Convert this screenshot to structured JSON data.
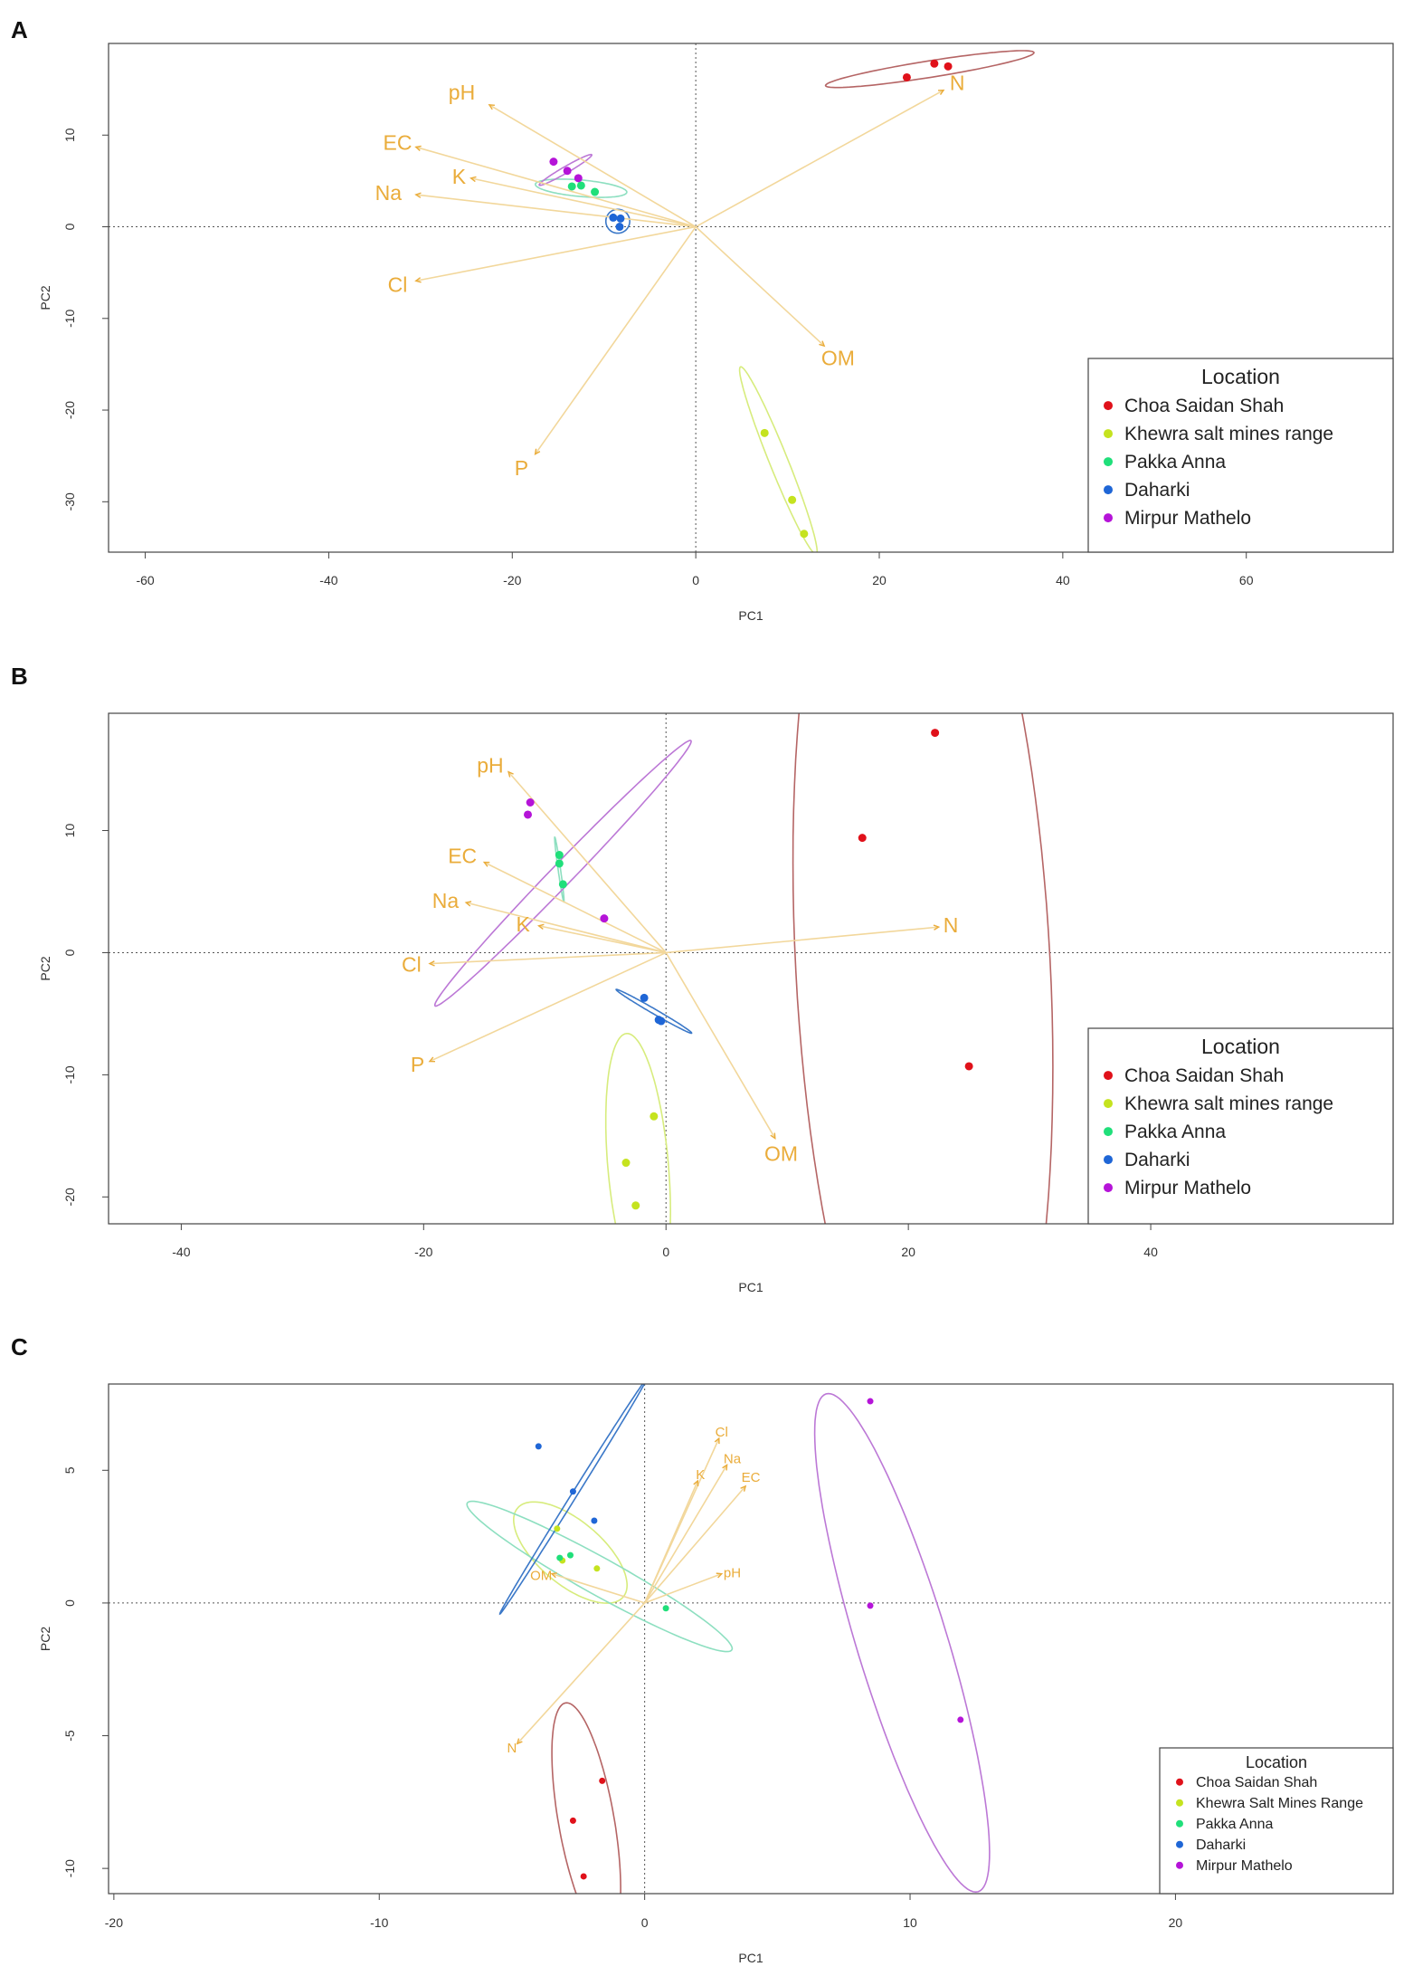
{
  "colors": {
    "loading": "#eaac3a",
    "arrow": "#f2d79b",
    "axis": "#333333",
    "Choa Saidan Shah": "#e0111a",
    "Khewra salt mines range": "#c5e31f",
    "Pakka Anna": "#20df7a",
    "Daharki": "#1f66d6",
    "Mirpur Mathelo": "#b514d8",
    "ellipse_Choa Saidan Shah": "#b56565",
    "ellipse_Khewra salt mines range": "#d7ec7d",
    "ellipse_Pakka Anna": "#8ddfc0",
    "ellipse_Daharki": "#3b78c8",
    "ellipse_Mirpur Mathelo": "#bc78d6"
  },
  "chart_data": [
    {
      "type": "scatter",
      "panel_label": "A",
      "xlabel": "PC1",
      "ylabel": "PC2",
      "xlim": [
        -64,
        76
      ],
      "ylim": [
        -35.5,
        20
      ],
      "xticks": [
        "-60",
        "-40",
        "-20",
        "0",
        "20",
        "40",
        "60"
      ],
      "yticks": [
        "-30",
        "-20",
        "-10",
        "0",
        "10"
      ],
      "legend_title": "Location",
      "legend_position": "bottom-right",
      "legend_items": [
        "Choa Saidan Shah",
        "Khewra salt mines range",
        "Pakka Anna",
        "Daharki",
        "Mirpur Mathelo"
      ],
      "series": [
        {
          "name": "Choa Saidan Shah",
          "points": [
            [
              23,
              16.3
            ],
            [
              26,
              17.8
            ],
            [
              27.5,
              17.5
            ]
          ],
          "ellipse": {
            "cx": 25.5,
            "cy": 17.2,
            "rx": 11.5,
            "ry": 0.9,
            "angle": 9
          }
        },
        {
          "name": "Khewra salt mines range",
          "points": [
            [
              7.5,
              -22.5
            ],
            [
              10.5,
              -29.8
            ],
            [
              11.8,
              -33.5
            ]
          ],
          "ellipse": {
            "cx": 9,
            "cy": -25.5,
            "rx": 11,
            "ry": 1.0,
            "angle": -68
          }
        },
        {
          "name": "Pakka Anna",
          "points": [
            [
              -13.5,
              4.4
            ],
            [
              -12.5,
              4.5
            ],
            [
              -11,
              3.8
            ]
          ],
          "ellipse": {
            "cx": -12.5,
            "cy": 4.2,
            "rx": 5,
            "ry": 0.9,
            "angle": -5
          }
        },
        {
          "name": "Daharki",
          "points": [
            [
              -9,
              1
            ],
            [
              -8.2,
              0.9
            ],
            [
              -8.3,
              0.0
            ]
          ],
          "ellipse": {
            "cx": -8.5,
            "cy": 0.6,
            "rx": 1.3,
            "ry": 1.3,
            "angle": 0
          }
        },
        {
          "name": "Mirpur Mathelo",
          "points": [
            [
              -15.5,
              7.1
            ],
            [
              -14,
              6.1
            ],
            [
              -12.8,
              5.3
            ]
          ],
          "ellipse": {
            "cx": -14.2,
            "cy": 6.2,
            "rx": 3.3,
            "ry": 0.35,
            "angle": 30
          }
        }
      ],
      "loadings": [
        {
          "label": "pH",
          "x": -22.5,
          "y": 13.3,
          "lx": -25.5,
          "ly": 14.5
        },
        {
          "label": "EC",
          "x": -30.5,
          "y": 8.7,
          "lx": -32.5,
          "ly": 9.0
        },
        {
          "label": "K",
          "x": -24.5,
          "y": 5.3,
          "lx": -25.8,
          "ly": 5.3
        },
        {
          "label": "Na",
          "x": -30.5,
          "y": 3.5,
          "lx": -33.5,
          "ly": 3.5
        },
        {
          "label": "Cl",
          "x": -30.5,
          "y": -5.9,
          "lx": -32.5,
          "ly": -6.5
        },
        {
          "label": "P",
          "x": -17.5,
          "y": -24.8,
          "lx": -19,
          "ly": -26.5
        },
        {
          "label": "OM",
          "x": 14,
          "y": -13,
          "lx": 15.5,
          "ly": -14.5
        },
        {
          "label": "N",
          "x": 27,
          "y": 14.9,
          "lx": 28.5,
          "ly": 15.5
        }
      ]
    },
    {
      "type": "scatter",
      "panel_label": "B",
      "xlabel": "PC1",
      "ylabel": "PC2",
      "xlim": [
        -46,
        60
      ],
      "ylim": [
        -22.2,
        19.6
      ],
      "xticks": [
        "-40",
        "-20",
        "0",
        "20",
        "40"
      ],
      "yticks": [
        "-20",
        "-10",
        "0",
        "10"
      ],
      "legend_title": "Location",
      "legend_position": "bottom-right",
      "legend_items": [
        "Choa Saidan Shah",
        "Khewra salt mines range",
        "Pakka Anna",
        "Daharki",
        "Mirpur Mathelo"
      ],
      "series": [
        {
          "name": "Choa Saidan Shah",
          "points": [
            [
              22.2,
              18
            ],
            [
              16.2,
              9.4
            ],
            [
              25,
              -9.3
            ]
          ],
          "ellipse": {
            "cx": 21.2,
            "cy": -1.0,
            "rx": 43,
            "ry": 10.5,
            "angle": -87
          }
        },
        {
          "name": "Khewra salt mines range",
          "points": [
            [
              -1,
              -13.4
            ],
            [
              -3.3,
              -17.2
            ],
            [
              -2.5,
              -20.7
            ]
          ],
          "ellipse": {
            "cx": -2.3,
            "cy": -17.5,
            "rx": 11,
            "ry": 2.5,
            "angle": -85
          }
        },
        {
          "name": "Pakka Anna",
          "points": [
            [
              -8.8,
              8
            ],
            [
              -8.8,
              7.3
            ],
            [
              -8.5,
              5.6
            ]
          ],
          "ellipse": {
            "cx": -8.8,
            "cy": 6.8,
            "rx": 2.7,
            "ry": 0.1,
            "angle": -82
          }
        },
        {
          "name": "Daharki",
          "points": [
            [
              -1.8,
              -3.7
            ],
            [
              -0.6,
              -5.5
            ],
            [
              -0.4,
              -5.6
            ]
          ],
          "ellipse": {
            "cx": -1.0,
            "cy": -4.8,
            "rx": 3.6,
            "ry": 0.2,
            "angle": -30
          }
        },
        {
          "name": "Mirpur Mathelo",
          "points": [
            [
              -11.2,
              12.3
            ],
            [
              -11.4,
              11.3
            ],
            [
              -5.1,
              2.8
            ]
          ],
          "ellipse": {
            "cx": -8.5,
            "cy": 6.5,
            "rx": 15.2,
            "ry": 0.9,
            "angle": 46
          }
        }
      ],
      "loadings": [
        {
          "label": "pH",
          "x": -13,
          "y": 14.8,
          "lx": -14.5,
          "ly": 15.2
        },
        {
          "label": "EC",
          "x": -15,
          "y": 7.4,
          "lx": -16.8,
          "ly": 7.8
        },
        {
          "label": "Na",
          "x": -16.5,
          "y": 4.1,
          "lx": -18.2,
          "ly": 4.1
        },
        {
          "label": "K",
          "x": -10.5,
          "y": 2.2,
          "lx": -11.8,
          "ly": 2.2
        },
        {
          "label": "Cl",
          "x": -19.5,
          "y": -0.9,
          "lx": -21,
          "ly": -1.1
        },
        {
          "label": "P",
          "x": -19.5,
          "y": -8.9,
          "lx": -20.5,
          "ly": -9.3
        },
        {
          "label": "OM",
          "x": 9,
          "y": -15.2,
          "lx": 9.5,
          "ly": -16.6
        },
        {
          "label": "N",
          "x": 22.5,
          "y": 2.1,
          "lx": 23.5,
          "ly": 2.1
        }
      ]
    },
    {
      "type": "scatter",
      "panel_label": "C",
      "xlabel": "PC1",
      "ylabel": "PC2",
      "xlim": [
        -20.2,
        28.2
      ],
      "ylim": [
        -10.95,
        8.25
      ],
      "xticks": [
        "-20",
        "-10",
        "0",
        "10",
        "20"
      ],
      "yticks": [
        "-10",
        "-5",
        "0",
        "5"
      ],
      "legend_title": "Location",
      "legend_position": "bottom-right",
      "legend_items": [
        "Choa Saidan Shah",
        "Khewra Salt Mines Range",
        "Pakka Anna",
        "Daharki",
        "Mirpur Mathelo"
      ],
      "series": [
        {
          "name": "Choa Saidan Shah",
          "points": [
            [
              -1.6,
              -6.7
            ],
            [
              -2.7,
              -8.2
            ],
            [
              -2.3,
              -10.3
            ]
          ],
          "ellipse": {
            "cx": -2.2,
            "cy": -8.2,
            "rx": 4.5,
            "ry": 1.05,
            "angle": -80
          }
        },
        {
          "name": "Khewra salt mines range",
          "points": [
            [
              -3.3,
              2.8
            ],
            [
              -3.1,
              1.6
            ],
            [
              -1.8,
              1.3
            ]
          ],
          "ellipse": {
            "cx": -2.8,
            "cy": 1.9,
            "rx": 2.6,
            "ry": 1.2,
            "angle": -40
          }
        },
        {
          "name": "Pakka Anna",
          "points": [
            [
              -3.2,
              1.7
            ],
            [
              -2.8,
              1.8
            ],
            [
              0.8,
              -0.2
            ]
          ],
          "ellipse": {
            "cx": -1.7,
            "cy": 1.0,
            "rx": 5.7,
            "ry": 0.7,
            "angle": -29
          }
        },
        {
          "name": "Daharki",
          "points": [
            [
              -4,
              5.9
            ],
            [
              -2.7,
              4.2
            ],
            [
              -1.9,
              3.1
            ]
          ],
          "ellipse": {
            "cx": -2.7,
            "cy": 4.0,
            "rx": 5.2,
            "ry": 0.1,
            "angle": 58
          }
        },
        {
          "name": "Mirpur Mathelo",
          "points": [
            [
              8.5,
              7.6
            ],
            [
              8.5,
              -0.1
            ],
            [
              11.9,
              -4.4
            ]
          ],
          "ellipse": {
            "cx": 9.7,
            "cy": -1.5,
            "rx": 9.8,
            "ry": 1.7,
            "angle": -73
          }
        }
      ],
      "loadings": [
        {
          "label": "Cl",
          "x": 2.8,
          "y": 6.2,
          "lx": 2.9,
          "ly": 6.4
        },
        {
          "label": "Na",
          "x": 3.1,
          "y": 5.2,
          "lx": 3.3,
          "ly": 5.4
        },
        {
          "label": "K",
          "x": 2.0,
          "y": 4.6,
          "lx": 2.1,
          "ly": 4.8
        },
        {
          "label": "EC",
          "x": 3.8,
          "y": 4.4,
          "lx": 4.0,
          "ly": 4.7
        },
        {
          "label": "pH",
          "x": 2.9,
          "y": 1.1,
          "lx": 3.3,
          "ly": 1.1
        },
        {
          "label": "OM",
          "x": -3.5,
          "y": 1.1,
          "lx": -3.9,
          "ly": 1.0
        },
        {
          "label": "N",
          "x": -4.8,
          "y": -5.3,
          "lx": -5.0,
          "ly": -5.5
        }
      ]
    }
  ]
}
